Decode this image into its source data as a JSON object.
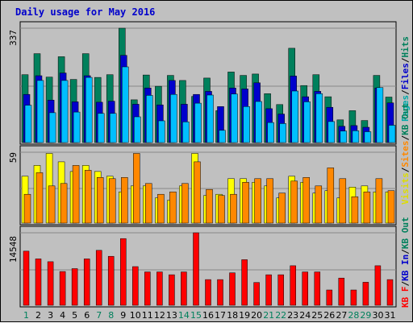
{
  "chart_data": {
    "type": "bar",
    "title": "Daily usage for May 2016",
    "categories": [
      "1",
      "2",
      "3",
      "4",
      "5",
      "6",
      "7",
      "8",
      "9",
      "10",
      "11",
      "12",
      "13",
      "14",
      "15",
      "16",
      "17",
      "18",
      "19",
      "20",
      "21",
      "22",
      "23",
      "24",
      "25",
      "26",
      "27",
      "28",
      "29",
      "30",
      "31"
    ],
    "weekend_days": [
      "1",
      "7",
      "8",
      "14",
      "15",
      "21",
      "22",
      "28",
      "29"
    ],
    "panels": [
      {
        "name": "top",
        "ytick": "337",
        "ymax": 337,
        "legend": [
          {
            "text": "Pages",
            "color": "#00aaaa"
          },
          {
            "text": "/",
            "color": "#000000"
          },
          {
            "text": "Files",
            "color": "#0000cc"
          },
          {
            "text": "/",
            "color": "#000000"
          },
          {
            "text": "Hits",
            "color": "#00805c"
          }
        ],
        "series": [
          {
            "name": "Hits",
            "color": "#00805c",
            "values": [
              200,
              262,
              193,
              253,
              186,
              262,
              192,
              200,
              337,
              126,
              199,
              166,
              198,
              183,
              136,
              190,
              94,
              208,
              198,
              202,
              144,
              112,
              278,
              168,
              200,
              135,
              67,
              94,
              65,
              198,
              134
            ]
          },
          {
            "name": "Files",
            "color": "#0000cc",
            "values": [
              142,
              197,
              125,
              205,
              120,
              197,
              119,
              122,
              257,
              113,
              161,
              111,
              183,
              113,
              142,
              151,
              106,
              161,
              158,
              176,
              100,
              84,
              196,
              135,
              151,
              104,
              48,
              50,
              45,
              161,
              117
            ]
          },
          {
            "name": "Pages",
            "color": "#00bfff",
            "values": [
              110,
              183,
              88,
              183,
              90,
              192,
              86,
              86,
              223,
              76,
              139,
              64,
              142,
              61,
              116,
              140,
              36,
              143,
              106,
              121,
              59,
              56,
              152,
              120,
              144,
              62,
              34,
              35,
              32,
              162,
              51
            ]
          }
        ]
      },
      {
        "name": "middle",
        "ytick": "59",
        "ymax": 59,
        "legend": [
          {
            "text": "Visits",
            "color": "#dddd00"
          },
          {
            "text": "/",
            "color": "#000000"
          },
          {
            "text": "Sites",
            "color": "#ff8800"
          },
          {
            "text": "/",
            "color": "#000000"
          },
          {
            "text": "KB Out",
            "color": "#00805c"
          }
        ],
        "series": [
          {
            "name": "Visits",
            "color": "#ffff00",
            "values": [
              39,
              48,
              58,
              51,
              43,
              48,
              43,
              39,
              26,
              31,
              31,
              21,
              19,
              31,
              58,
              23,
              24,
              37,
              37,
              34,
              31,
              21,
              39,
              34,
              25,
              27,
              21,
              30,
              31,
              26,
              26
            ]
          },
          {
            "name": "Sites",
            "color": "#ff8800",
            "values": [
              24,
              42,
              31,
              33,
              48,
              44,
              38,
              37,
              38,
              58,
              33,
              24,
              26,
              33,
              51,
              28,
              23,
              24,
              34,
              37,
              37,
              25,
              35,
              38,
              31,
              46,
              37,
              22,
              26,
              37,
              27
            ]
          }
        ]
      },
      {
        "name": "bottom",
        "ytick": "14548",
        "ymax": 14548,
        "legend": [
          {
            "text": "KB F",
            "color": "#ff0000"
          },
          {
            "text": "/",
            "color": "#000000"
          },
          {
            "text": "KB In",
            "color": "#0000cc"
          },
          {
            "text": "/",
            "color": "#000000"
          },
          {
            "text": "KB Out",
            "color": "#00805c"
          }
        ],
        "series": [
          {
            "name": "KB F",
            "color": "#ff0000",
            "values": [
              10870,
              9310,
              8750,
              6780,
              7360,
              9310,
              11020,
              9830,
              13380,
              7760,
              6700,
              6700,
              6130,
              6700,
              14548,
              5150,
              5150,
              6520,
              9150,
              4580,
              6120,
              6120,
              7930,
              6700,
              6700,
              3070,
              5460,
              3070,
              4630,
              7930,
              5150
            ]
          }
        ]
      }
    ]
  }
}
